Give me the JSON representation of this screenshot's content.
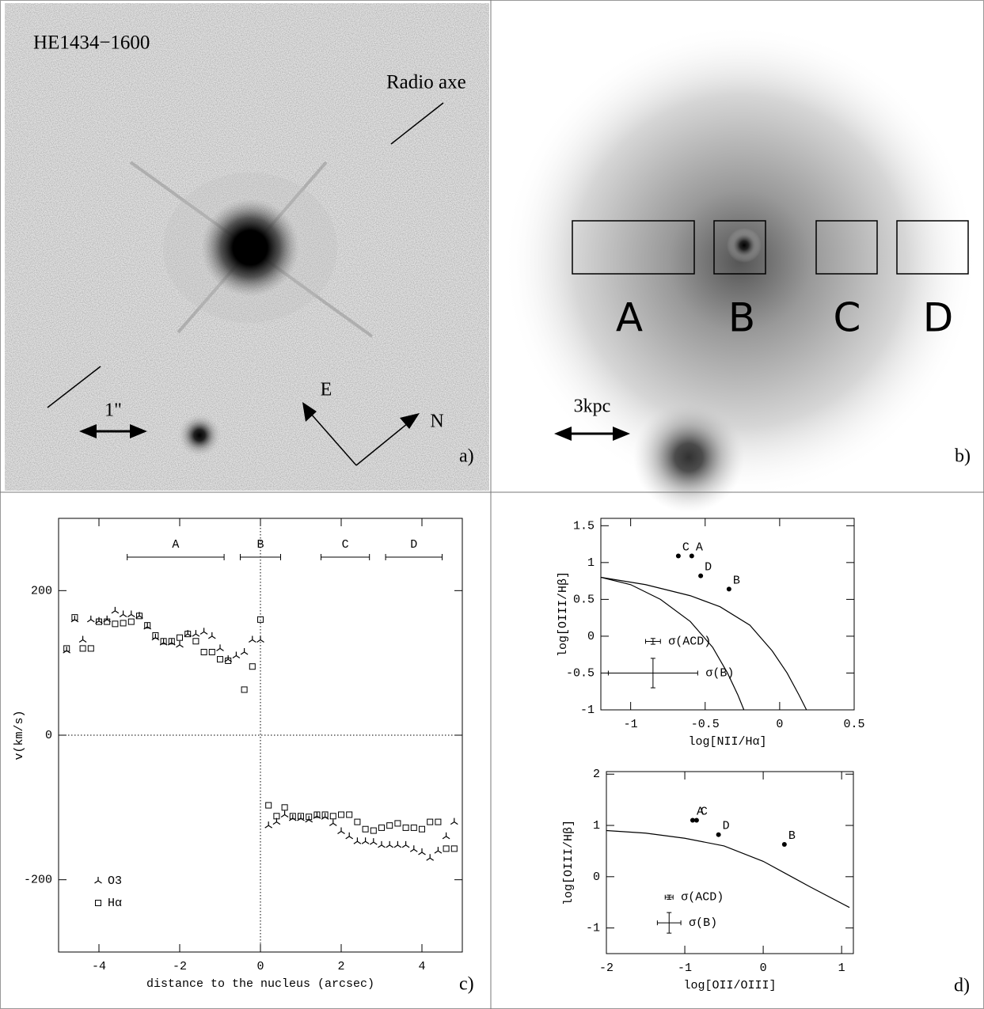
{
  "panel_a": {
    "title": "HE1434−1600",
    "radio_label": "Radio axe",
    "scale_label": "1\"",
    "east": "E",
    "north": "N",
    "tag": "a)"
  },
  "panel_b": {
    "boxes": [
      "A",
      "B",
      "C",
      "D"
    ],
    "scale_label": "3kpc",
    "tag": "b)"
  },
  "panel_d": {
    "tag": "d)"
  },
  "chart_data": [
    {
      "type": "scatter",
      "tag": "c)",
      "xlabel": "distance to the nucleus (arcsec)",
      "ylabel": "v(km/s)",
      "xlim": [
        -5,
        5
      ],
      "ylim": [
        -300,
        300
      ],
      "xticks": [
        -4,
        -2,
        0,
        2,
        4
      ],
      "yticks": [
        -200,
        0,
        200
      ],
      "ref_lines": {
        "x": 0,
        "y": 0
      },
      "regions": [
        {
          "label": "A",
          "x": [
            -3.3,
            -0.9
          ]
        },
        {
          "label": "B",
          "x": [
            -0.5,
            0.5
          ]
        },
        {
          "label": "C",
          "x": [
            1.5,
            2.7
          ]
        },
        {
          "label": "D",
          "x": [
            3.1,
            4.5
          ]
        }
      ],
      "series": [
        {
          "name": "O3",
          "marker": "tri",
          "color": "#000000",
          "x": [
            -4.8,
            -4.6,
            -4.4,
            -4.2,
            -4.0,
            -3.8,
            -3.6,
            -3.4,
            -3.2,
            -3.0,
            -2.8,
            -2.6,
            -2.4,
            -2.2,
            -2.0,
            -1.8,
            -1.6,
            -1.4,
            -1.2,
            -1.0,
            -0.8,
            -0.6,
            -0.4,
            -0.2,
            0,
            0.2,
            0.4,
            0.6,
            0.8,
            1.0,
            1.2,
            1.4,
            1.6,
            1.8,
            2.0,
            2.2,
            2.4,
            2.6,
            2.8,
            3.0,
            3.2,
            3.4,
            3.6,
            3.8,
            4.0,
            4.2,
            4.4,
            4.6,
            4.8
          ],
          "values": [
            117,
            160,
            132,
            160,
            158,
            160,
            172,
            167,
            167,
            165,
            150,
            135,
            128,
            128,
            125,
            140,
            140,
            143,
            137,
            120,
            105,
            110,
            115,
            132,
            132,
            -125,
            -120,
            -110,
            -115,
            -115,
            -117,
            -112,
            -113,
            -122,
            -133,
            -140,
            -147,
            -147,
            -148,
            -152,
            -152,
            -152,
            -152,
            -158,
            -162,
            -170,
            -160,
            -140,
            -120
          ]
        },
        {
          "name": "Hα",
          "marker": "square",
          "color": "#000000",
          "x": [
            -4.8,
            -4.6,
            -4.4,
            -4.2,
            -4.0,
            -3.8,
            -3.6,
            -3.4,
            -3.2,
            -3.0,
            -2.8,
            -2.6,
            -2.4,
            -2.2,
            -2.0,
            -1.8,
            -1.6,
            -1.4,
            -1.2,
            -1.0,
            -0.8,
            -0.4,
            -0.2,
            0,
            0.2,
            0.4,
            0.6,
            0.8,
            1.0,
            1.2,
            1.4,
            1.6,
            1.8,
            2.0,
            2.2,
            2.4,
            2.6,
            2.8,
            3.0,
            3.2,
            3.4,
            3.6,
            3.8,
            4.0,
            4.2,
            4.4,
            4.6,
            4.8
          ],
          "values": [
            120,
            163,
            120,
            120,
            157,
            157,
            154,
            155,
            157,
            165,
            152,
            138,
            130,
            130,
            135,
            140,
            130,
            115,
            115,
            105,
            103,
            63,
            95,
            160,
            -97,
            -112,
            -100,
            -112,
            -112,
            -113,
            -110,
            -110,
            -112,
            -110,
            -110,
            -120,
            -130,
            -132,
            -128,
            -125,
            -122,
            -128,
            -128,
            -130,
            -120,
            -120,
            -157,
            -157
          ]
        }
      ]
    },
    {
      "type": "scatter",
      "xlabel": "log[NII/Hα]",
      "ylabel": "log[OIII/Hβ]",
      "xlim": [
        -1.2,
        0.5
      ],
      "ylim": [
        -1,
        1.6
      ],
      "xticks": [
        -1,
        -0.5,
        0,
        0.5
      ],
      "yticks": [
        -1,
        -0.5,
        0,
        0.5,
        1,
        1.5
      ],
      "points": {
        "labels": [
          "C",
          "A",
          "D",
          "B"
        ],
        "x": [
          -0.68,
          -0.59,
          -0.53,
          -0.34
        ],
        "y": [
          1.09,
          1.09,
          0.82,
          0.64
        ]
      },
      "curves": [
        {
          "x": [
            -1.2,
            -0.9,
            -0.6,
            -0.4,
            -0.2,
            -0.05,
            0.05,
            0.13,
            0.18
          ],
          "y": [
            0.8,
            0.7,
            0.55,
            0.4,
            0.15,
            -0.2,
            -0.5,
            -0.8,
            -1
          ]
        },
        {
          "x": [
            -1.2,
            -1,
            -0.8,
            -0.6,
            -0.45,
            -0.35,
            -0.28,
            -0.24
          ],
          "y": [
            0.8,
            0.7,
            0.5,
            0.2,
            -0.15,
            -0.5,
            -0.8,
            -1
          ]
        }
      ],
      "error_bars": [
        {
          "label": "σ(ACD)",
          "x": -0.85,
          "y": -0.07,
          "xerr": 0.05,
          "yerr": 0.04
        },
        {
          "label": "σ(B)",
          "x": -0.85,
          "y": -0.5,
          "xerr": 0.3,
          "yerr": 0.2
        }
      ]
    },
    {
      "type": "scatter",
      "xlabel": "log[OII/OIII]",
      "ylabel": "log[OIII/Hβ]",
      "xlim": [
        -2,
        1.15
      ],
      "ylim": [
        -1.5,
        2.05
      ],
      "xticks": [
        -2,
        -1,
        0,
        1
      ],
      "yticks": [
        -1,
        0,
        1,
        2
      ],
      "points": {
        "labels": [
          "A",
          "C",
          "D",
          "B"
        ],
        "x": [
          -0.9,
          -0.85,
          -0.57,
          0.27
        ],
        "y": [
          1.1,
          1.1,
          0.82,
          0.63
        ]
      },
      "curves": [
        {
          "x": [
            -2,
            -1.5,
            -1,
            -0.5,
            0,
            0.3,
            0.6,
            1.1
          ],
          "y": [
            0.9,
            0.85,
            0.75,
            0.6,
            0.3,
            0.05,
            -0.2,
            -0.6
          ]
        }
      ],
      "error_bars": [
        {
          "label": "σ(ACD)",
          "x": -1.2,
          "y": -0.4,
          "xerr": 0.05,
          "yerr": 0.04
        },
        {
          "label": "σ(B)",
          "x": -1.2,
          "y": -0.9,
          "xerr": 0.15,
          "yerr": 0.2
        }
      ]
    }
  ]
}
